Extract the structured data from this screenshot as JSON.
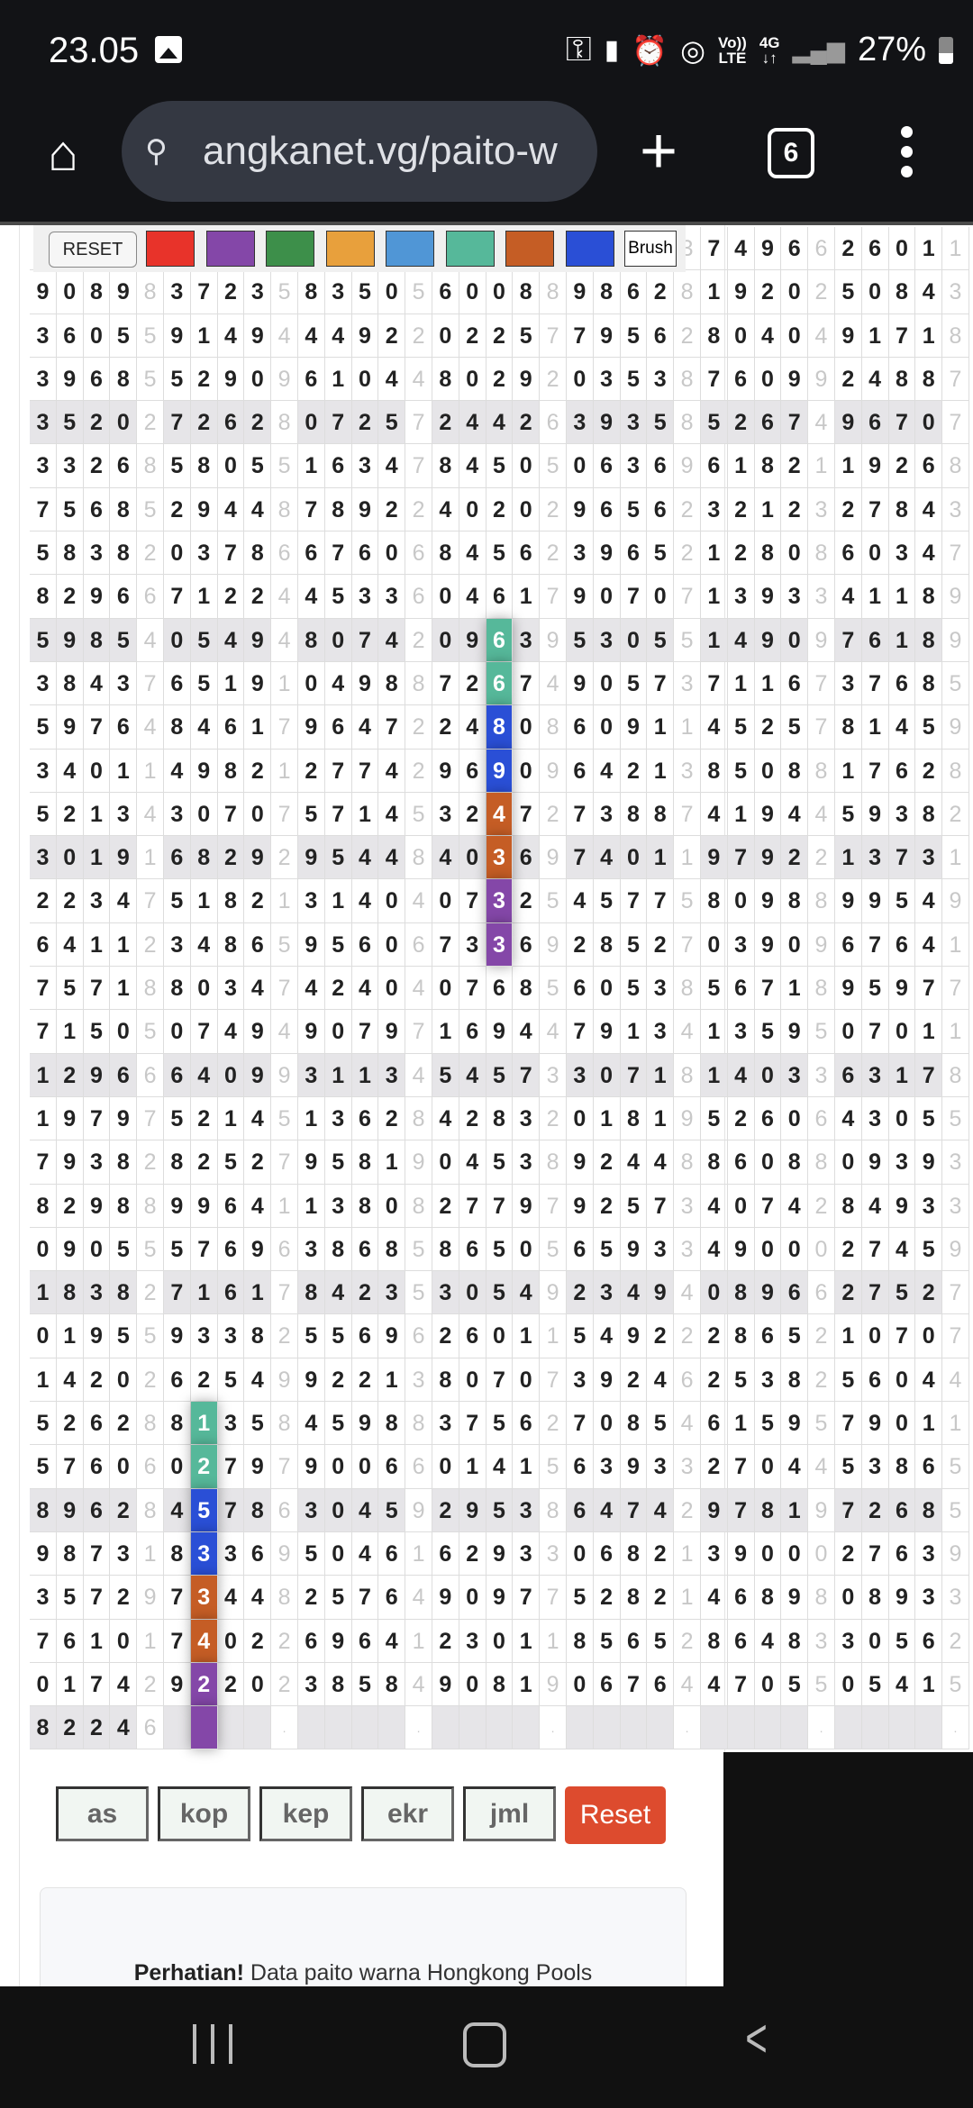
{
  "status_bar": {
    "time": "23.05",
    "battery": "27%",
    "network": "4G",
    "volte_top": "Vo))",
    "volte_bottom": "LTE"
  },
  "browser": {
    "url": "angkanet.vg/paito-w",
    "tab_count": "6"
  },
  "toolbar": {
    "reset_label": "RESET",
    "brush_label": "Brush",
    "swatches": [
      "#e8332a",
      "#8447a8",
      "#3d8f4a",
      "#e8a03c",
      "#5096d6",
      "#56b89a",
      "#c55d25",
      "#2a4fd6"
    ]
  },
  "grid": {
    "partial_top_row": "                        37496626011",
    "rows": [
      "90898372358350560088986281920250843",
      "36055914944492202257795628040491718",
      "39685529096104480292035387609924887",
      "35202726280725724426393585267496707",
      "33268580551634784505063696182119268",
      "75685294487892240202965623212327843",
      "58382037866760684562396521280860347",
      "82966712244533604617907071393341189",
      "59854054948074209639530551490976189",
      "38437651910498872674905737116737685",
      "59764846179647224808609114525781459",
      "34011498212774296909642138508817628",
      "52134307075714532472738874194459382",
      "30191682929544840369740119792213731",
      "22347518213140407325457758098899549",
      "64112348659560673369285270390967641",
      "75718803474240407685605385671895977",
      "71505074949079716944791341359507011",
      "12966640993113454573307181403363178",
      "19797521451362842832018195260643055",
      "79382825279581904538924488608809393",
      "82988996411380827797925734074284933",
      "09055576963868586505659334900027459",
      "18382716178423530549234940896627527",
      "01955933825569626011549222865210707",
      "14202625499221380707392462538256044",
      "52628813584598837562708546159579011",
      "57606027979006601415639332704453865",
      "89628457863045929538647429781972685",
      "98731833695046162933068213900027639",
      "35729734482576490977528214689808933",
      "76101740226964123011856528648330562",
      "01742922023858490819067644705505415",
      "82246    .    .    .    .    .    ."
    ],
    "highlight_rows_every": 5,
    "highlights": [
      {
        "row": 8,
        "col": 17,
        "color": "#56b89a"
      },
      {
        "row": 9,
        "col": 17,
        "color": "#56b89a"
      },
      {
        "row": 10,
        "col": 17,
        "color": "#2a4fd6"
      },
      {
        "row": 11,
        "col": 17,
        "color": "#2a4fd6"
      },
      {
        "row": 12,
        "col": 17,
        "color": "#c55d25"
      },
      {
        "row": 13,
        "col": 17,
        "color": "#c55d25"
      },
      {
        "row": 14,
        "col": 17,
        "color": "#8447a8"
      },
      {
        "row": 15,
        "col": 17,
        "color": "#8447a8"
      },
      {
        "row": 26,
        "col": 6,
        "color": "#56b89a"
      },
      {
        "row": 27,
        "col": 6,
        "color": "#56b89a"
      },
      {
        "row": 28,
        "col": 6,
        "color": "#2a4fd6"
      },
      {
        "row": 29,
        "col": 6,
        "color": "#2a4fd6"
      },
      {
        "row": 30,
        "col": 6,
        "color": "#c55d25"
      },
      {
        "row": 31,
        "col": 6,
        "color": "#c55d25"
      },
      {
        "row": 32,
        "col": 6,
        "color": "#8447a8"
      },
      {
        "row": 33,
        "col": 6,
        "color": "#8447a8"
      }
    ]
  },
  "filters": {
    "buttons": [
      "as",
      "kop",
      "kep",
      "ekr",
      "jml"
    ],
    "reset_label": "Reset",
    "reset_color": "#dd4b2e"
  },
  "notice": {
    "bold": "Perhatian!",
    "text": " Data paito warna Hongkong Pools"
  }
}
